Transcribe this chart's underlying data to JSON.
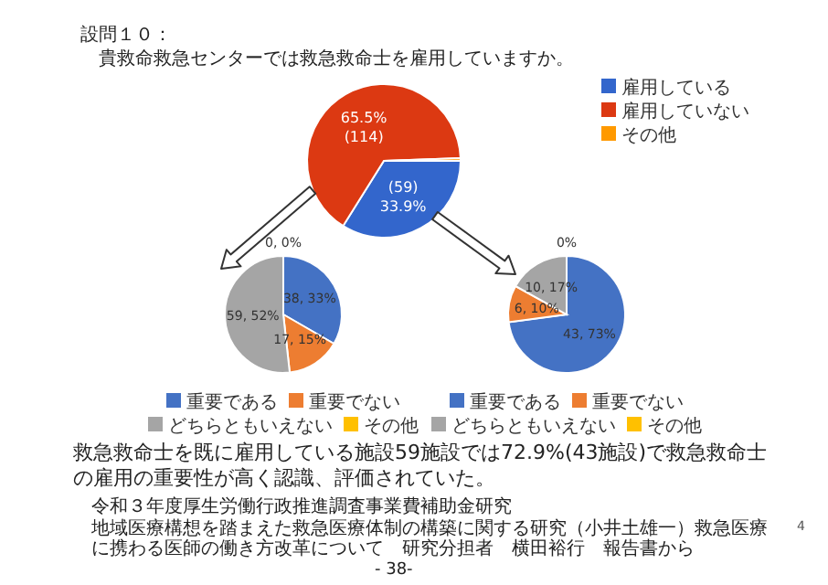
{
  "chart_data": [
    {
      "type": "pie",
      "title": "設問１０：",
      "subtitle": "貴救命救急センターでは救急救命士を雇用していますか。",
      "categories": [
        "雇用している",
        "雇用していない",
        "その他"
      ],
      "values": [
        59,
        114,
        1
      ],
      "colors": [
        "#3366cc",
        "#dc3912",
        "#ff9900"
      ],
      "value_labels": [
        "(59)\n33.9%",
        "65.5%\n(114)",
        null
      ],
      "legend": "top right"
    },
    {
      "type": "pie",
      "categories": [
        "重要である",
        "重要でない",
        "どちらともいえない",
        "その他"
      ],
      "values": [
        38,
        17,
        59,
        0
      ],
      "colors": [
        "#4472c4",
        "#ed7d31",
        "#a5a5a5",
        "#ffc000"
      ],
      "value_labels": [
        "38, 33%",
        "17, 15%",
        "59, 52%",
        "0, 0%"
      ],
      "legend": "bottom"
    },
    {
      "type": "pie",
      "categories": [
        "重要である",
        "重要でない",
        "どちらともいえない",
        "その他"
      ],
      "values": [
        43,
        6,
        10,
        0
      ],
      "colors": [
        "#4472c4",
        "#ed7d31",
        "#a5a5a5",
        "#ffc000"
      ],
      "value_labels": [
        "43, 73%",
        "6, 10%",
        "10, 17%",
        "0%"
      ],
      "legend": "bottom",
      "annotations": [
        "救急救命士を既に雇用している施設59施設では72.9%(43施設)で救急救命士の雇用の重要性が高く認識、評価されていた。",
        "令和３年度厚生労働行政推進調査事業費補助金研究",
        "地域医療構想を踏まえた救急医療体制の構築に関する研究（小井土雄一）救急医療",
        "に携わる医師の働き方改革について　研究分担者　横田裕行　報告書から",
        "4",
        "- 38-"
      ]
    }
  ]
}
